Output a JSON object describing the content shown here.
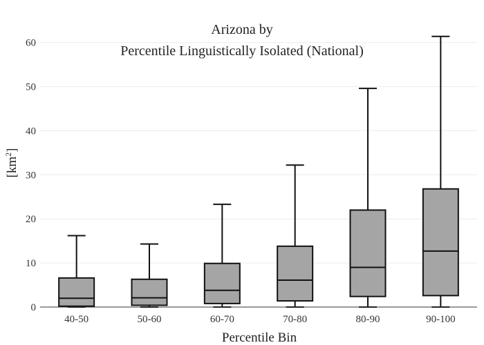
{
  "chart_data": {
    "type": "box",
    "title_line1": "Arizona  by",
    "title_line2": "Percentile Linguistically Isolated (National)",
    "xlabel": "Percentile Bin",
    "ylabel_base": "[km",
    "ylabel_sup": "2",
    "ylabel_close": "]",
    "ylim": [
      0,
      63
    ],
    "yticks": [
      0,
      10,
      20,
      30,
      40,
      50,
      60
    ],
    "grid": true,
    "box_color": "#a5a5a5",
    "categories": [
      "40-50",
      "50-60",
      "60-70",
      "70-80",
      "80-90",
      "90-100"
    ],
    "boxes": [
      {
        "category": "40-50",
        "min": 0,
        "q1": 0.2,
        "median": 2.0,
        "q3": 6.6,
        "max": 16.2
      },
      {
        "category": "50-60",
        "min": 0,
        "q1": 0.4,
        "median": 2.1,
        "q3": 6.3,
        "max": 14.3
      },
      {
        "category": "60-70",
        "min": 0,
        "q1": 0.8,
        "median": 3.8,
        "q3": 9.9,
        "max": 23.3
      },
      {
        "category": "70-80",
        "min": 0,
        "q1": 1.4,
        "median": 6.1,
        "q3": 13.8,
        "max": 32.2
      },
      {
        "category": "80-90",
        "min": 0,
        "q1": 2.4,
        "median": 9.0,
        "q3": 22.0,
        "max": 49.6
      },
      {
        "category": "90-100",
        "min": 0,
        "q1": 2.6,
        "median": 12.7,
        "q3": 26.8,
        "max": 61.4
      }
    ]
  }
}
